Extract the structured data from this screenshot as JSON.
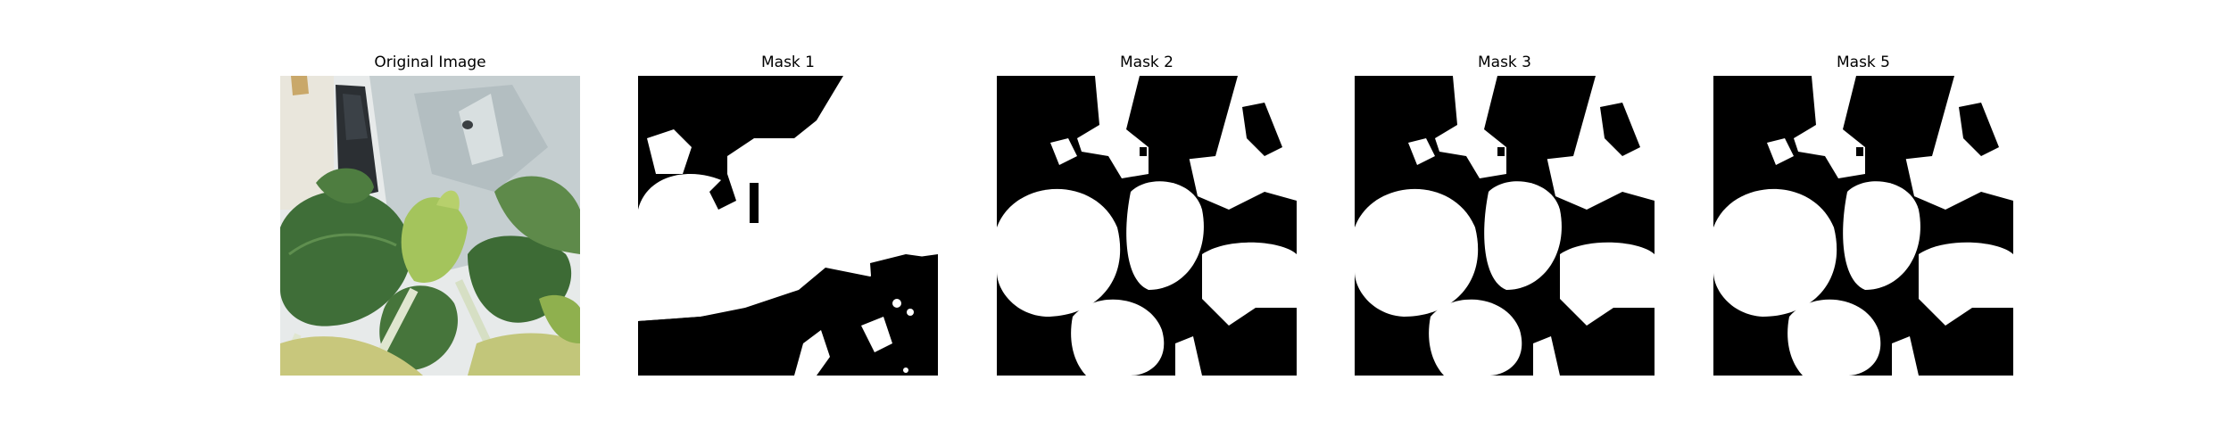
{
  "panels": [
    {
      "title": "Original Image"
    },
    {
      "title": "Mask 1"
    },
    {
      "title": "Mask 2"
    },
    {
      "title": "Mask 3"
    },
    {
      "title": "Mask 5"
    }
  ],
  "colors": {
    "mask_foreground": "#ffffff",
    "mask_background": "#000000",
    "leaf_dark": "#3f6e38",
    "leaf_light": "#9fbf5a",
    "plastic_bag": "#c9d2d4",
    "stem": "#dfe6cf"
  }
}
